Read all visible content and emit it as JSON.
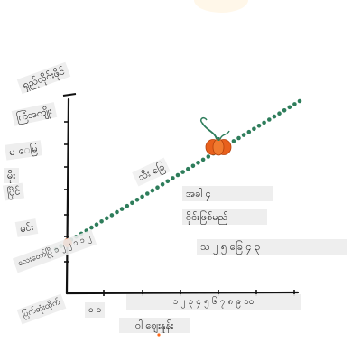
{
  "labels": {
    "top_left": "ရှည်လိုင်းဖိုင်",
    "y_1": "ကြံအကျိုး",
    "y_2": "မ ေမြ",
    "y_3": "မိုး",
    "y_4": "ပြိုင်",
    "y_5": "မင်း",
    "line_left": "လေးတော်ပြို ၁ ၂ ၂ ၁ ၁ ၂",
    "bottom_left": "ပြက်ဆုံးထိုက်",
    "x_small": "ဝ ၁",
    "x_ticks": "၁ ၂ ၃ ၄ ၅ ၆ ၇ ၈ ၉ ၁၀",
    "x_title": "ဝါ ဈေးနှုန်း",
    "mid_line": "သီး ခြေ",
    "right_1": "အခါ ၄",
    "right_2": "ဝိုင်းဖြစ်မည်",
    "right_3": "သ ၂ ၅ ခြေ ၄ ၃"
  },
  "colors": {
    "dots": "#2e7d5b",
    "pumpkin": "#e8601c",
    "stem": "#2e7d5b",
    "axis": "#111111",
    "highlight": "#ff6a1a"
  },
  "icons": {
    "pumpkin": "pumpkin-icon",
    "marker": "orange-dot-icon"
  }
}
